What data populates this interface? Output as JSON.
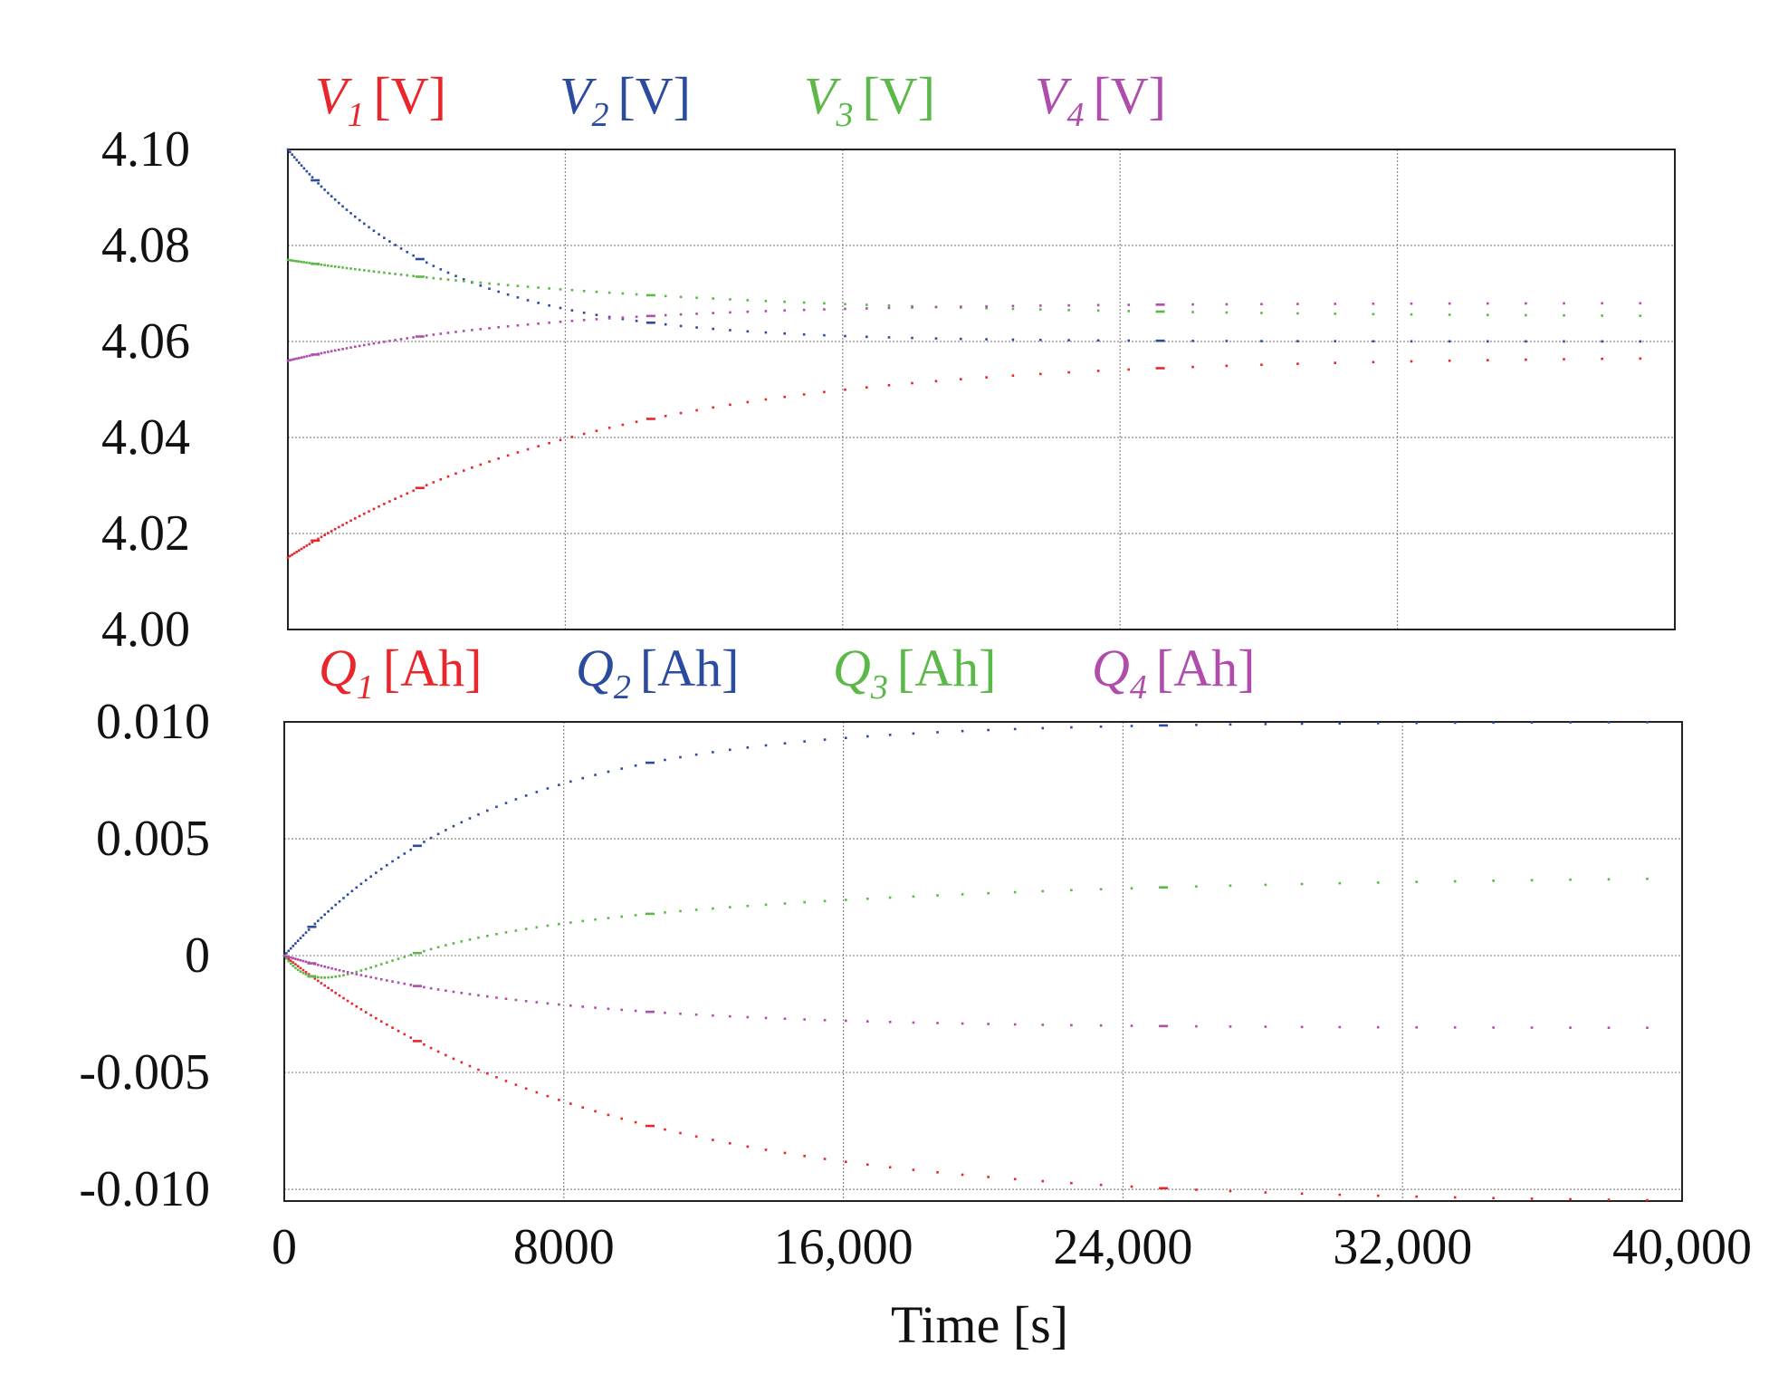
{
  "colors": {
    "s1": "#e8262b",
    "s2": "#2b4c9e",
    "s3": "#5cb848",
    "s4": "#b04dac"
  },
  "chart_data": [
    {
      "type": "scatter",
      "title": "",
      "xlabel": "Time [s]",
      "ylabel": "",
      "xlim": [
        0,
        40000
      ],
      "ylim": [
        4.0,
        4.1
      ],
      "grid": true,
      "legend_position": "top",
      "y_ticks": [
        4.0,
        4.02,
        4.04,
        4.06,
        4.08,
        4.1
      ],
      "y_tick_labels": [
        "4.00",
        "4.02",
        "4.04",
        "4.06",
        "4.08",
        "4.10"
      ],
      "x_ticks": [
        0,
        8000,
        16000,
        24000,
        32000,
        40000
      ],
      "series": [
        {
          "name": "V1",
          "symbol": "V",
          "sub": "1",
          "unit": "[V]",
          "start": 4.015,
          "end": 4.057,
          "tau": 9000,
          "marker": "dots"
        },
        {
          "name": "V2",
          "symbol": "V",
          "sub": "2",
          "unit": "[V]",
          "start": 4.1,
          "end": 4.06,
          "tau": 4500,
          "marker": "dots"
        },
        {
          "name": "V3",
          "symbol": "V",
          "sub": "3",
          "unit": "[V]",
          "start": 4.077,
          "end": 4.065,
          "tau": 11000,
          "marker": "dots"
        },
        {
          "name": "V4",
          "symbol": "V",
          "sub": "4",
          "unit": "[V]",
          "start": 4.056,
          "end": 4.068,
          "tau": 7000,
          "marker": "dots"
        }
      ]
    },
    {
      "type": "scatter",
      "title": "",
      "xlabel": "Time [s]",
      "ylabel": "",
      "xlim": [
        0,
        40000
      ],
      "ylim": [
        -0.0105,
        0.01
      ],
      "grid": true,
      "legend_position": "top",
      "y_ticks": [
        -0.01,
        -0.005,
        0,
        0.005,
        0.01
      ],
      "y_tick_labels": [
        "-0.010",
        "-0.005",
        "0",
        "0.005",
        "0.010"
      ],
      "x_ticks": [
        0,
        8000,
        16000,
        24000,
        32000,
        40000
      ],
      "x_tick_labels": [
        "0",
        "8000",
        "16,000",
        "24,000",
        "32,000",
        "40,000"
      ],
      "series": [
        {
          "name": "Q1",
          "symbol": "Q",
          "sub": "1",
          "unit": "[Ah]",
          "start": 0,
          "end": -0.0106,
          "tau": 9000,
          "marker": "dots"
        },
        {
          "name": "Q2",
          "symbol": "Q",
          "sub": "2",
          "unit": "[Ah]",
          "start": 0,
          "end": 0.01,
          "tau": 6000,
          "marker": "dots"
        },
        {
          "name": "Q3",
          "symbol": "Q",
          "sub": "3",
          "unit": "[Ah]",
          "start": 0,
          "end": 0.0035,
          "tau": 14000,
          "marker": "dots",
          "note": "starts slightly negative, crosses zero near 5000 s"
        },
        {
          "name": "Q4",
          "symbol": "Q",
          "sub": "4",
          "unit": "[Ah]",
          "start": 0,
          "end": -0.0031,
          "tau": 7000,
          "marker": "dots"
        }
      ]
    }
  ]
}
